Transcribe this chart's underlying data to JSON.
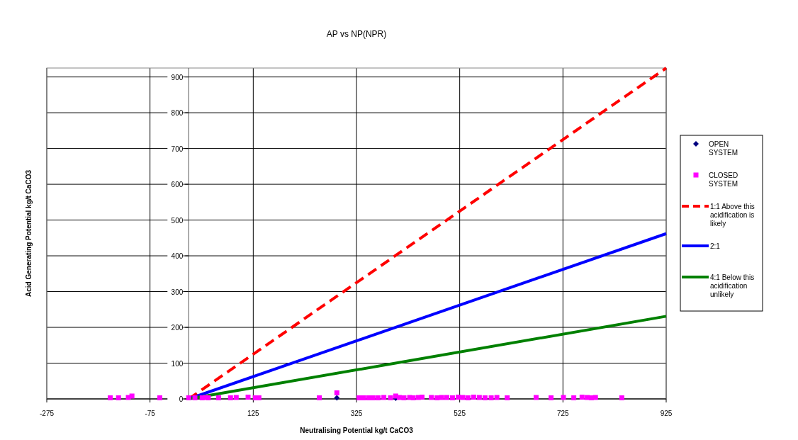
{
  "chart_data": {
    "type": "scatter",
    "title": "AP vs NP(NPR)",
    "xlabel": "Neutralising Potential kg/t CaCO3",
    "ylabel": "Acid Generating Potential kg/t CaCO3",
    "xlim": [
      -275,
      925
    ],
    "xticks": [
      -275,
      -75,
      125,
      325,
      525,
      725,
      925
    ],
    "ylim": [
      0,
      925
    ],
    "yticks": [
      0,
      100,
      200,
      300,
      400,
      500,
      600,
      700,
      800,
      900
    ],
    "grid": true,
    "legend": "right",
    "series": [
      {
        "name": "OPEN SYSTEM",
        "marker": "diamond",
        "color": "#000080",
        "x": [
          287,
          401
        ],
        "values": [
          3,
          2
        ]
      },
      {
        "name": "CLOSED SYSTEM",
        "marker": "square",
        "color": "#ff00ff",
        "x": [
          -152,
          -136,
          -117,
          -110,
          -56,
          0,
          12,
          26,
          33,
          38,
          58,
          81,
          92,
          115,
          129,
          136,
          253,
          287,
          330,
          339,
          349,
          357,
          367,
          378,
          391,
          401,
          408,
          417,
          428,
          435,
          445,
          452,
          470,
          481,
          490,
          500,
          511,
          522,
          531,
          541,
          552,
          563,
          574,
          586,
          597,
          617,
          673,
          702,
          726,
          746,
          762,
          772,
          780,
          788,
          839
        ],
        "values": [
          3,
          3,
          4,
          8,
          3,
          3,
          3,
          3,
          4,
          3,
          3,
          3,
          4,
          5,
          3,
          3,
          3,
          17,
          3,
          3,
          3,
          3,
          3,
          4,
          3,
          8,
          4,
          3,
          4,
          3,
          4,
          5,
          4,
          3,
          4,
          4,
          3,
          5,
          4,
          3,
          5,
          4,
          3,
          3,
          4,
          3,
          4,
          3,
          4,
          3,
          5,
          4,
          3,
          4,
          3
        ]
      },
      {
        "name": "1:1 Above this acidification is likely",
        "type": "line",
        "line_style": "dashed",
        "color": "#ff0000",
        "x": [
          0,
          925
        ],
        "values": [
          0,
          925
        ]
      },
      {
        "name": "2:1",
        "type": "line",
        "line_style": "solid",
        "color": "#0000ff",
        "x": [
          0,
          925
        ],
        "values": [
          0,
          462
        ]
      },
      {
        "name": "4:1 Below this acidification unlikely",
        "type": "line",
        "line_style": "solid",
        "color": "#008000",
        "x": [
          0,
          925
        ],
        "values": [
          0,
          231
        ]
      }
    ]
  }
}
